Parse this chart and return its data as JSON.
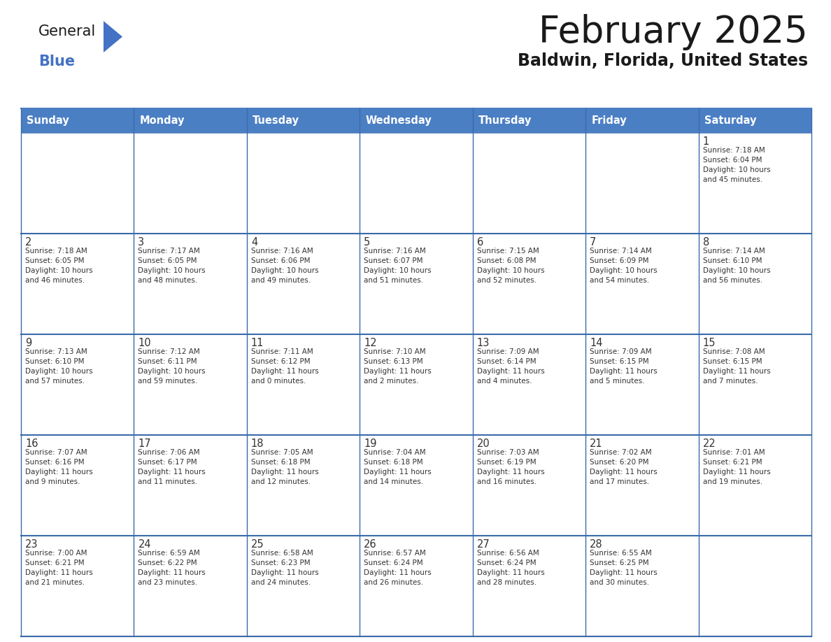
{
  "title": "February 2025",
  "subtitle": "Baldwin, Florida, United States",
  "days_of_week": [
    "Sunday",
    "Monday",
    "Tuesday",
    "Wednesday",
    "Thursday",
    "Friday",
    "Saturday"
  ],
  "header_bg": "#4b7fc4",
  "header_text": "#FFFFFF",
  "cell_bg": "#FFFFFF",
  "cell_bg_alt": "#F5F5F5",
  "cell_border": "#3a6aaa",
  "day_num_color": "#333333",
  "cell_text_color": "#333333",
  "title_color": "#1a1a1a",
  "subtitle_color": "#1a1a1a",
  "logo_general_color": "#1a1a1a",
  "logo_blue_color": "#4472C4",
  "weeks": [
    [
      {
        "day": null,
        "info": null
      },
      {
        "day": null,
        "info": null
      },
      {
        "day": null,
        "info": null
      },
      {
        "day": null,
        "info": null
      },
      {
        "day": null,
        "info": null
      },
      {
        "day": null,
        "info": null
      },
      {
        "day": 1,
        "info": "Sunrise: 7:18 AM\nSunset: 6:04 PM\nDaylight: 10 hours\nand 45 minutes."
      }
    ],
    [
      {
        "day": 2,
        "info": "Sunrise: 7:18 AM\nSunset: 6:05 PM\nDaylight: 10 hours\nand 46 minutes."
      },
      {
        "day": 3,
        "info": "Sunrise: 7:17 AM\nSunset: 6:05 PM\nDaylight: 10 hours\nand 48 minutes."
      },
      {
        "day": 4,
        "info": "Sunrise: 7:16 AM\nSunset: 6:06 PM\nDaylight: 10 hours\nand 49 minutes."
      },
      {
        "day": 5,
        "info": "Sunrise: 7:16 AM\nSunset: 6:07 PM\nDaylight: 10 hours\nand 51 minutes."
      },
      {
        "day": 6,
        "info": "Sunrise: 7:15 AM\nSunset: 6:08 PM\nDaylight: 10 hours\nand 52 minutes."
      },
      {
        "day": 7,
        "info": "Sunrise: 7:14 AM\nSunset: 6:09 PM\nDaylight: 10 hours\nand 54 minutes."
      },
      {
        "day": 8,
        "info": "Sunrise: 7:14 AM\nSunset: 6:10 PM\nDaylight: 10 hours\nand 56 minutes."
      }
    ],
    [
      {
        "day": 9,
        "info": "Sunrise: 7:13 AM\nSunset: 6:10 PM\nDaylight: 10 hours\nand 57 minutes."
      },
      {
        "day": 10,
        "info": "Sunrise: 7:12 AM\nSunset: 6:11 PM\nDaylight: 10 hours\nand 59 minutes."
      },
      {
        "day": 11,
        "info": "Sunrise: 7:11 AM\nSunset: 6:12 PM\nDaylight: 11 hours\nand 0 minutes."
      },
      {
        "day": 12,
        "info": "Sunrise: 7:10 AM\nSunset: 6:13 PM\nDaylight: 11 hours\nand 2 minutes."
      },
      {
        "day": 13,
        "info": "Sunrise: 7:09 AM\nSunset: 6:14 PM\nDaylight: 11 hours\nand 4 minutes."
      },
      {
        "day": 14,
        "info": "Sunrise: 7:09 AM\nSunset: 6:15 PM\nDaylight: 11 hours\nand 5 minutes."
      },
      {
        "day": 15,
        "info": "Sunrise: 7:08 AM\nSunset: 6:15 PM\nDaylight: 11 hours\nand 7 minutes."
      }
    ],
    [
      {
        "day": 16,
        "info": "Sunrise: 7:07 AM\nSunset: 6:16 PM\nDaylight: 11 hours\nand 9 minutes."
      },
      {
        "day": 17,
        "info": "Sunrise: 7:06 AM\nSunset: 6:17 PM\nDaylight: 11 hours\nand 11 minutes."
      },
      {
        "day": 18,
        "info": "Sunrise: 7:05 AM\nSunset: 6:18 PM\nDaylight: 11 hours\nand 12 minutes."
      },
      {
        "day": 19,
        "info": "Sunrise: 7:04 AM\nSunset: 6:18 PM\nDaylight: 11 hours\nand 14 minutes."
      },
      {
        "day": 20,
        "info": "Sunrise: 7:03 AM\nSunset: 6:19 PM\nDaylight: 11 hours\nand 16 minutes."
      },
      {
        "day": 21,
        "info": "Sunrise: 7:02 AM\nSunset: 6:20 PM\nDaylight: 11 hours\nand 17 minutes."
      },
      {
        "day": 22,
        "info": "Sunrise: 7:01 AM\nSunset: 6:21 PM\nDaylight: 11 hours\nand 19 minutes."
      }
    ],
    [
      {
        "day": 23,
        "info": "Sunrise: 7:00 AM\nSunset: 6:21 PM\nDaylight: 11 hours\nand 21 minutes."
      },
      {
        "day": 24,
        "info": "Sunrise: 6:59 AM\nSunset: 6:22 PM\nDaylight: 11 hours\nand 23 minutes."
      },
      {
        "day": 25,
        "info": "Sunrise: 6:58 AM\nSunset: 6:23 PM\nDaylight: 11 hours\nand 24 minutes."
      },
      {
        "day": 26,
        "info": "Sunrise: 6:57 AM\nSunset: 6:24 PM\nDaylight: 11 hours\nand 26 minutes."
      },
      {
        "day": 27,
        "info": "Sunrise: 6:56 AM\nSunset: 6:24 PM\nDaylight: 11 hours\nand 28 minutes."
      },
      {
        "day": 28,
        "info": "Sunrise: 6:55 AM\nSunset: 6:25 PM\nDaylight: 11 hours\nand 30 minutes."
      },
      {
        "day": null,
        "info": null
      }
    ]
  ]
}
